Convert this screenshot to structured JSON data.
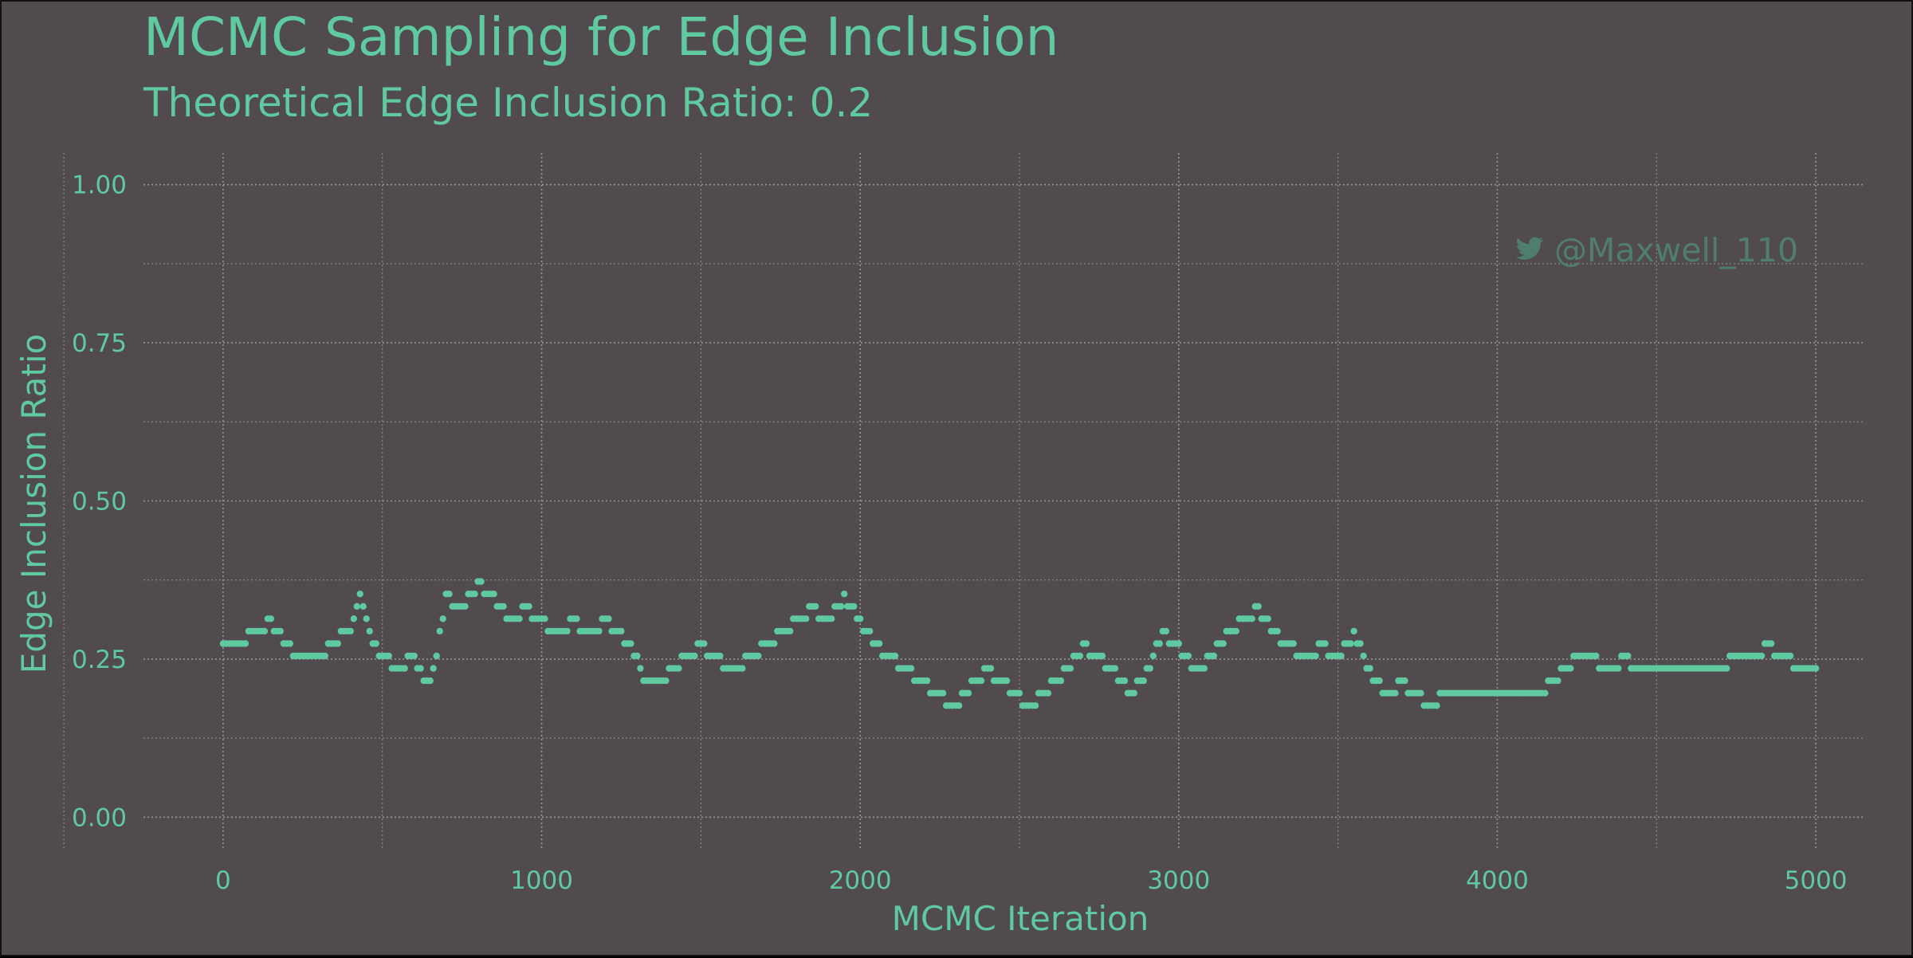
{
  "header": {
    "title": "MCMC Sampling for Edge Inclusion",
    "subtitle": "Theoretical Edge Inclusion Ratio: 0.2"
  },
  "watermark": {
    "icon": "twitter-bird-icon",
    "handle": "@Maxwell_110"
  },
  "colors": {
    "background": "#514a4f",
    "accent": "#5fc9a0",
    "grid": "#9a9497",
    "watermark": "#4f7d6e"
  },
  "chart_data": {
    "type": "scatter",
    "title": "MCMC Sampling for Edge Inclusion",
    "subtitle": "Theoretical Edge Inclusion Ratio: 0.2",
    "xlabel": "MCMC Iteration",
    "ylabel": "Edge Inclusion Ratio",
    "xlim": [
      -250,
      5150
    ],
    "ylim": [
      -0.05,
      1.05
    ],
    "xticks": [
      0,
      1000,
      2000,
      3000,
      4000,
      5000
    ],
    "xtick_labels": [
      "0",
      "1000",
      "2000",
      "3000",
      "4000",
      "5000"
    ],
    "yticks": [
      0,
      0.25,
      0.5,
      0.75,
      1
    ],
    "ytick_labels": [
      "0.00",
      "0.25",
      "0.50",
      "0.75",
      "1.00"
    ],
    "grid": true,
    "grid_style": "dotted",
    "marker_note": "points plotted every 10 iterations; ratio moves in steps of ~0.0196 (1/51)",
    "series": [
      {
        "x": [
          0,
          100,
          150,
          200,
          250,
          300,
          400,
          430,
          460,
          500,
          550,
          600,
          640,
          660,
          700,
          750,
          800,
          850,
          900,
          950,
          1000,
          1050,
          1100,
          1150,
          1200,
          1250,
          1300,
          1330,
          1360,
          1400,
          1450,
          1500,
          1550,
          1600,
          1650,
          1700,
          1750,
          1800,
          1850,
          1900,
          1950,
          2000,
          2050,
          2100,
          2150,
          2200,
          2250,
          2300,
          2350,
          2400,
          2450,
          2500,
          2530,
          2560,
          2600,
          2650,
          2700,
          2750,
          2800,
          2850,
          2900,
          2950,
          3000,
          3050,
          3100,
          3150,
          3200,
          3250,
          3300,
          3350,
          3400,
          3450,
          3500,
          3550,
          3600,
          3650,
          3700,
          3750,
          3800,
          3850,
          3900,
          3950,
          4000,
          4050,
          4100,
          4150,
          4200,
          4250,
          4300,
          4350,
          4400,
          4450,
          4500,
          4550,
          4600,
          4650,
          4700,
          4750,
          4800,
          4850,
          4900,
          4950,
          5000
        ],
        "y": [
          0.27,
          0.29,
          0.31,
          0.27,
          0.25,
          0.25,
          0.3,
          0.35,
          0.29,
          0.25,
          0.24,
          0.25,
          0.21,
          0.23,
          0.35,
          0.33,
          0.37,
          0.35,
          0.31,
          0.33,
          0.31,
          0.29,
          0.31,
          0.29,
          0.31,
          0.29,
          0.25,
          0.21,
          0.21,
          0.23,
          0.25,
          0.27,
          0.25,
          0.23,
          0.25,
          0.27,
          0.29,
          0.31,
          0.33,
          0.31,
          0.35,
          0.31,
          0.27,
          0.25,
          0.23,
          0.21,
          0.19,
          0.18,
          0.21,
          0.23,
          0.21,
          0.19,
          0.17,
          0.19,
          0.21,
          0.23,
          0.27,
          0.25,
          0.23,
          0.19,
          0.23,
          0.29,
          0.27,
          0.23,
          0.25,
          0.29,
          0.31,
          0.33,
          0.29,
          0.27,
          0.25,
          0.27,
          0.25,
          0.29,
          0.23,
          0.19,
          0.21,
          0.19,
          0.18,
          0.2,
          0.2,
          0.2,
          0.2,
          0.2,
          0.2,
          0.2,
          0.23,
          0.25,
          0.25,
          0.23,
          0.25,
          0.23,
          0.23,
          0.24,
          0.23,
          0.23,
          0.24,
          0.25,
          0.25,
          0.27,
          0.25,
          0.24,
          0.23
        ]
      }
    ]
  }
}
